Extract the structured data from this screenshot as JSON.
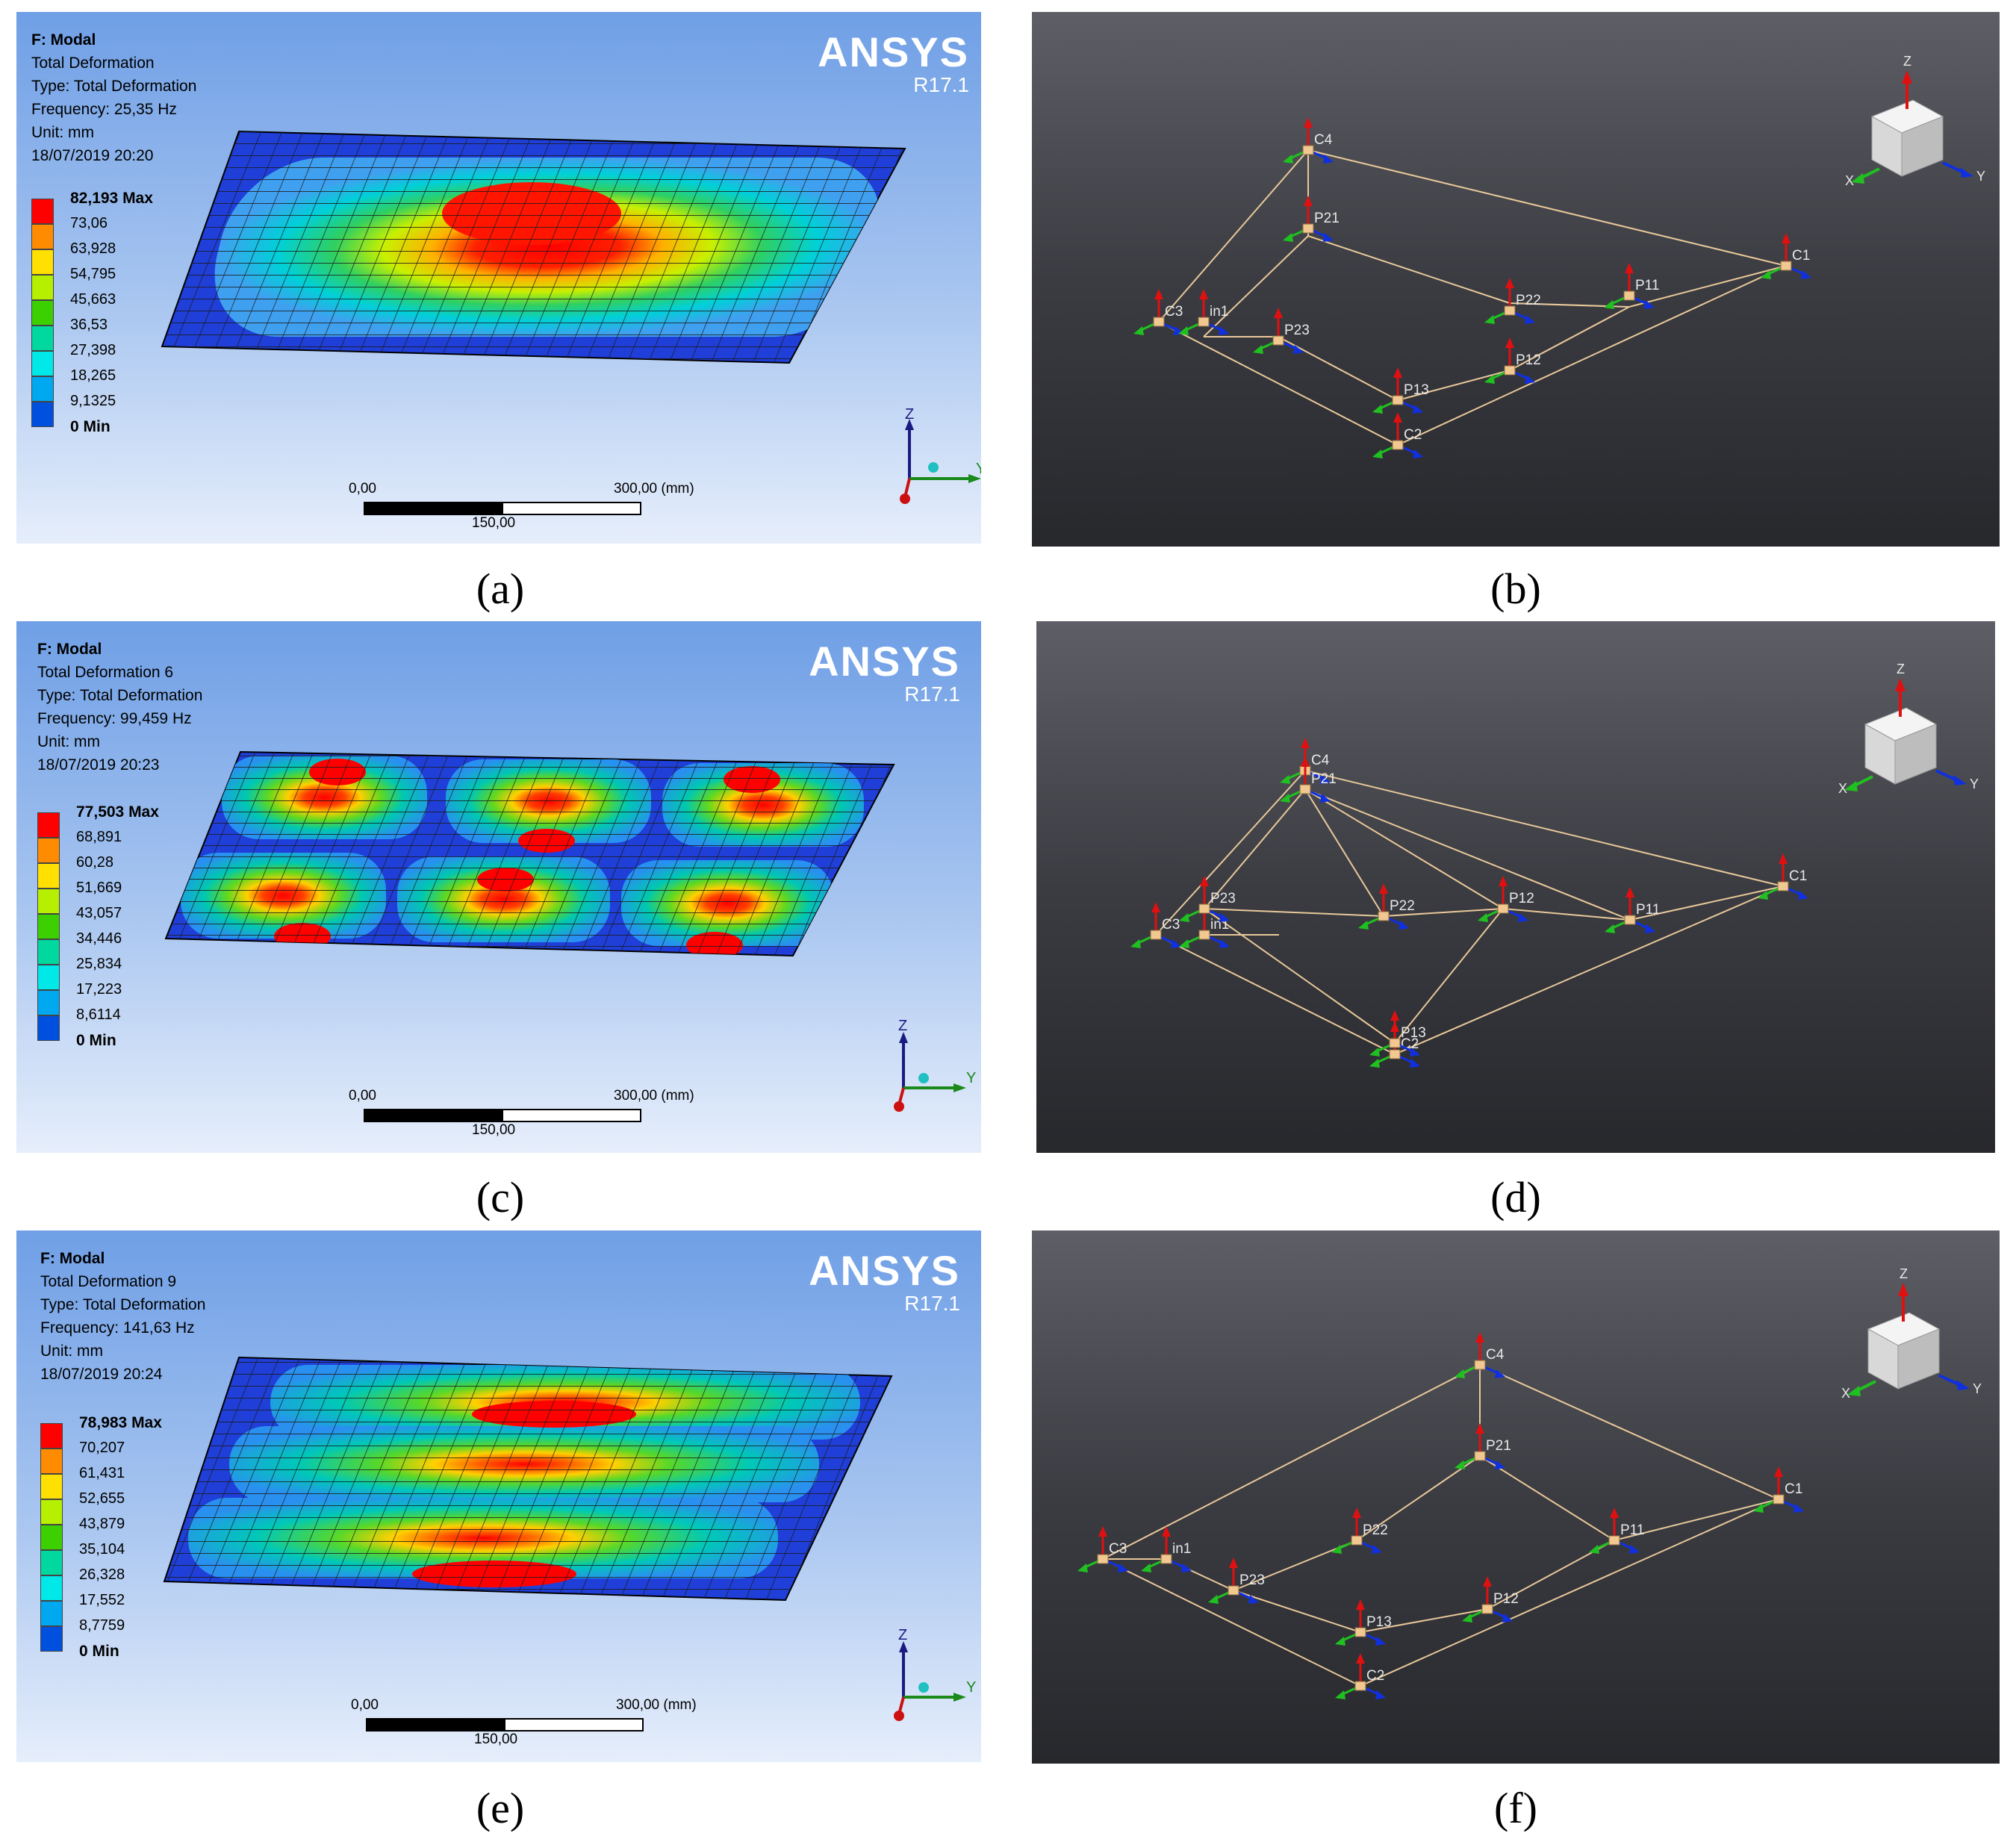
{
  "panels": [
    {
      "caption": "(a)",
      "title": "F: Modal",
      "result": "Total Deformation",
      "type": "Type: Total Deformation",
      "frequency": "Frequency: 25,35 Hz",
      "unit": "Unit: mm",
      "date": "18/07/2019 20:20",
      "legend": [
        "82,193 Max",
        "73,06",
        "63,928",
        "54,795",
        "45,663",
        "36,53",
        "27,398",
        "18,265",
        "9,1325",
        "0 Min"
      ]
    },
    {
      "caption": "(c)",
      "title": "F: Modal",
      "result": "Total Deformation 6",
      "type": "Type: Total Deformation",
      "frequency": "Frequency: 99,459 Hz",
      "unit": "Unit: mm",
      "date": "18/07/2019 20:23",
      "legend": [
        "77,503 Max",
        "68,891",
        "60,28",
        "51,669",
        "43,057",
        "34,446",
        "25,834",
        "17,223",
        "8,6114",
        "0 Min"
      ]
    },
    {
      "caption": "(e)",
      "title": "F: Modal",
      "result": "Total Deformation 9",
      "type": "Type: Total Deformation",
      "frequency": "Frequency: 141,63 Hz",
      "unit": "Unit: mm",
      "date": "18/07/2019 20:24",
      "legend": [
        "78,983 Max",
        "70,207",
        "61,431",
        "52,655",
        "43,879",
        "35,104",
        "26,328",
        "17,552",
        "8,7759",
        "0 Min"
      ]
    }
  ],
  "geometry_panels": [
    {
      "caption": "(b)"
    },
    {
      "caption": "(d)"
    },
    {
      "caption": "(f)"
    }
  ],
  "ansys_logo": {
    "brand": "ANSYS",
    "version": "R17.1"
  },
  "scale_bar": {
    "start": "0,00",
    "end": "300,00 (mm)",
    "mid": "150,00"
  },
  "axes": {
    "x": "X",
    "y": "Y",
    "z": "Z"
  },
  "node_labels": [
    "C1",
    "C2",
    "C3",
    "C4",
    "in1",
    "P11",
    "P12",
    "P13",
    "P21",
    "P22",
    "P23"
  ],
  "legend_colors": [
    "#ff0000",
    "#ff8c00",
    "#ffe000",
    "#b6f000",
    "#3cd000",
    "#00d8a0",
    "#00e8e8",
    "#00a8f0",
    "#0050e0"
  ]
}
